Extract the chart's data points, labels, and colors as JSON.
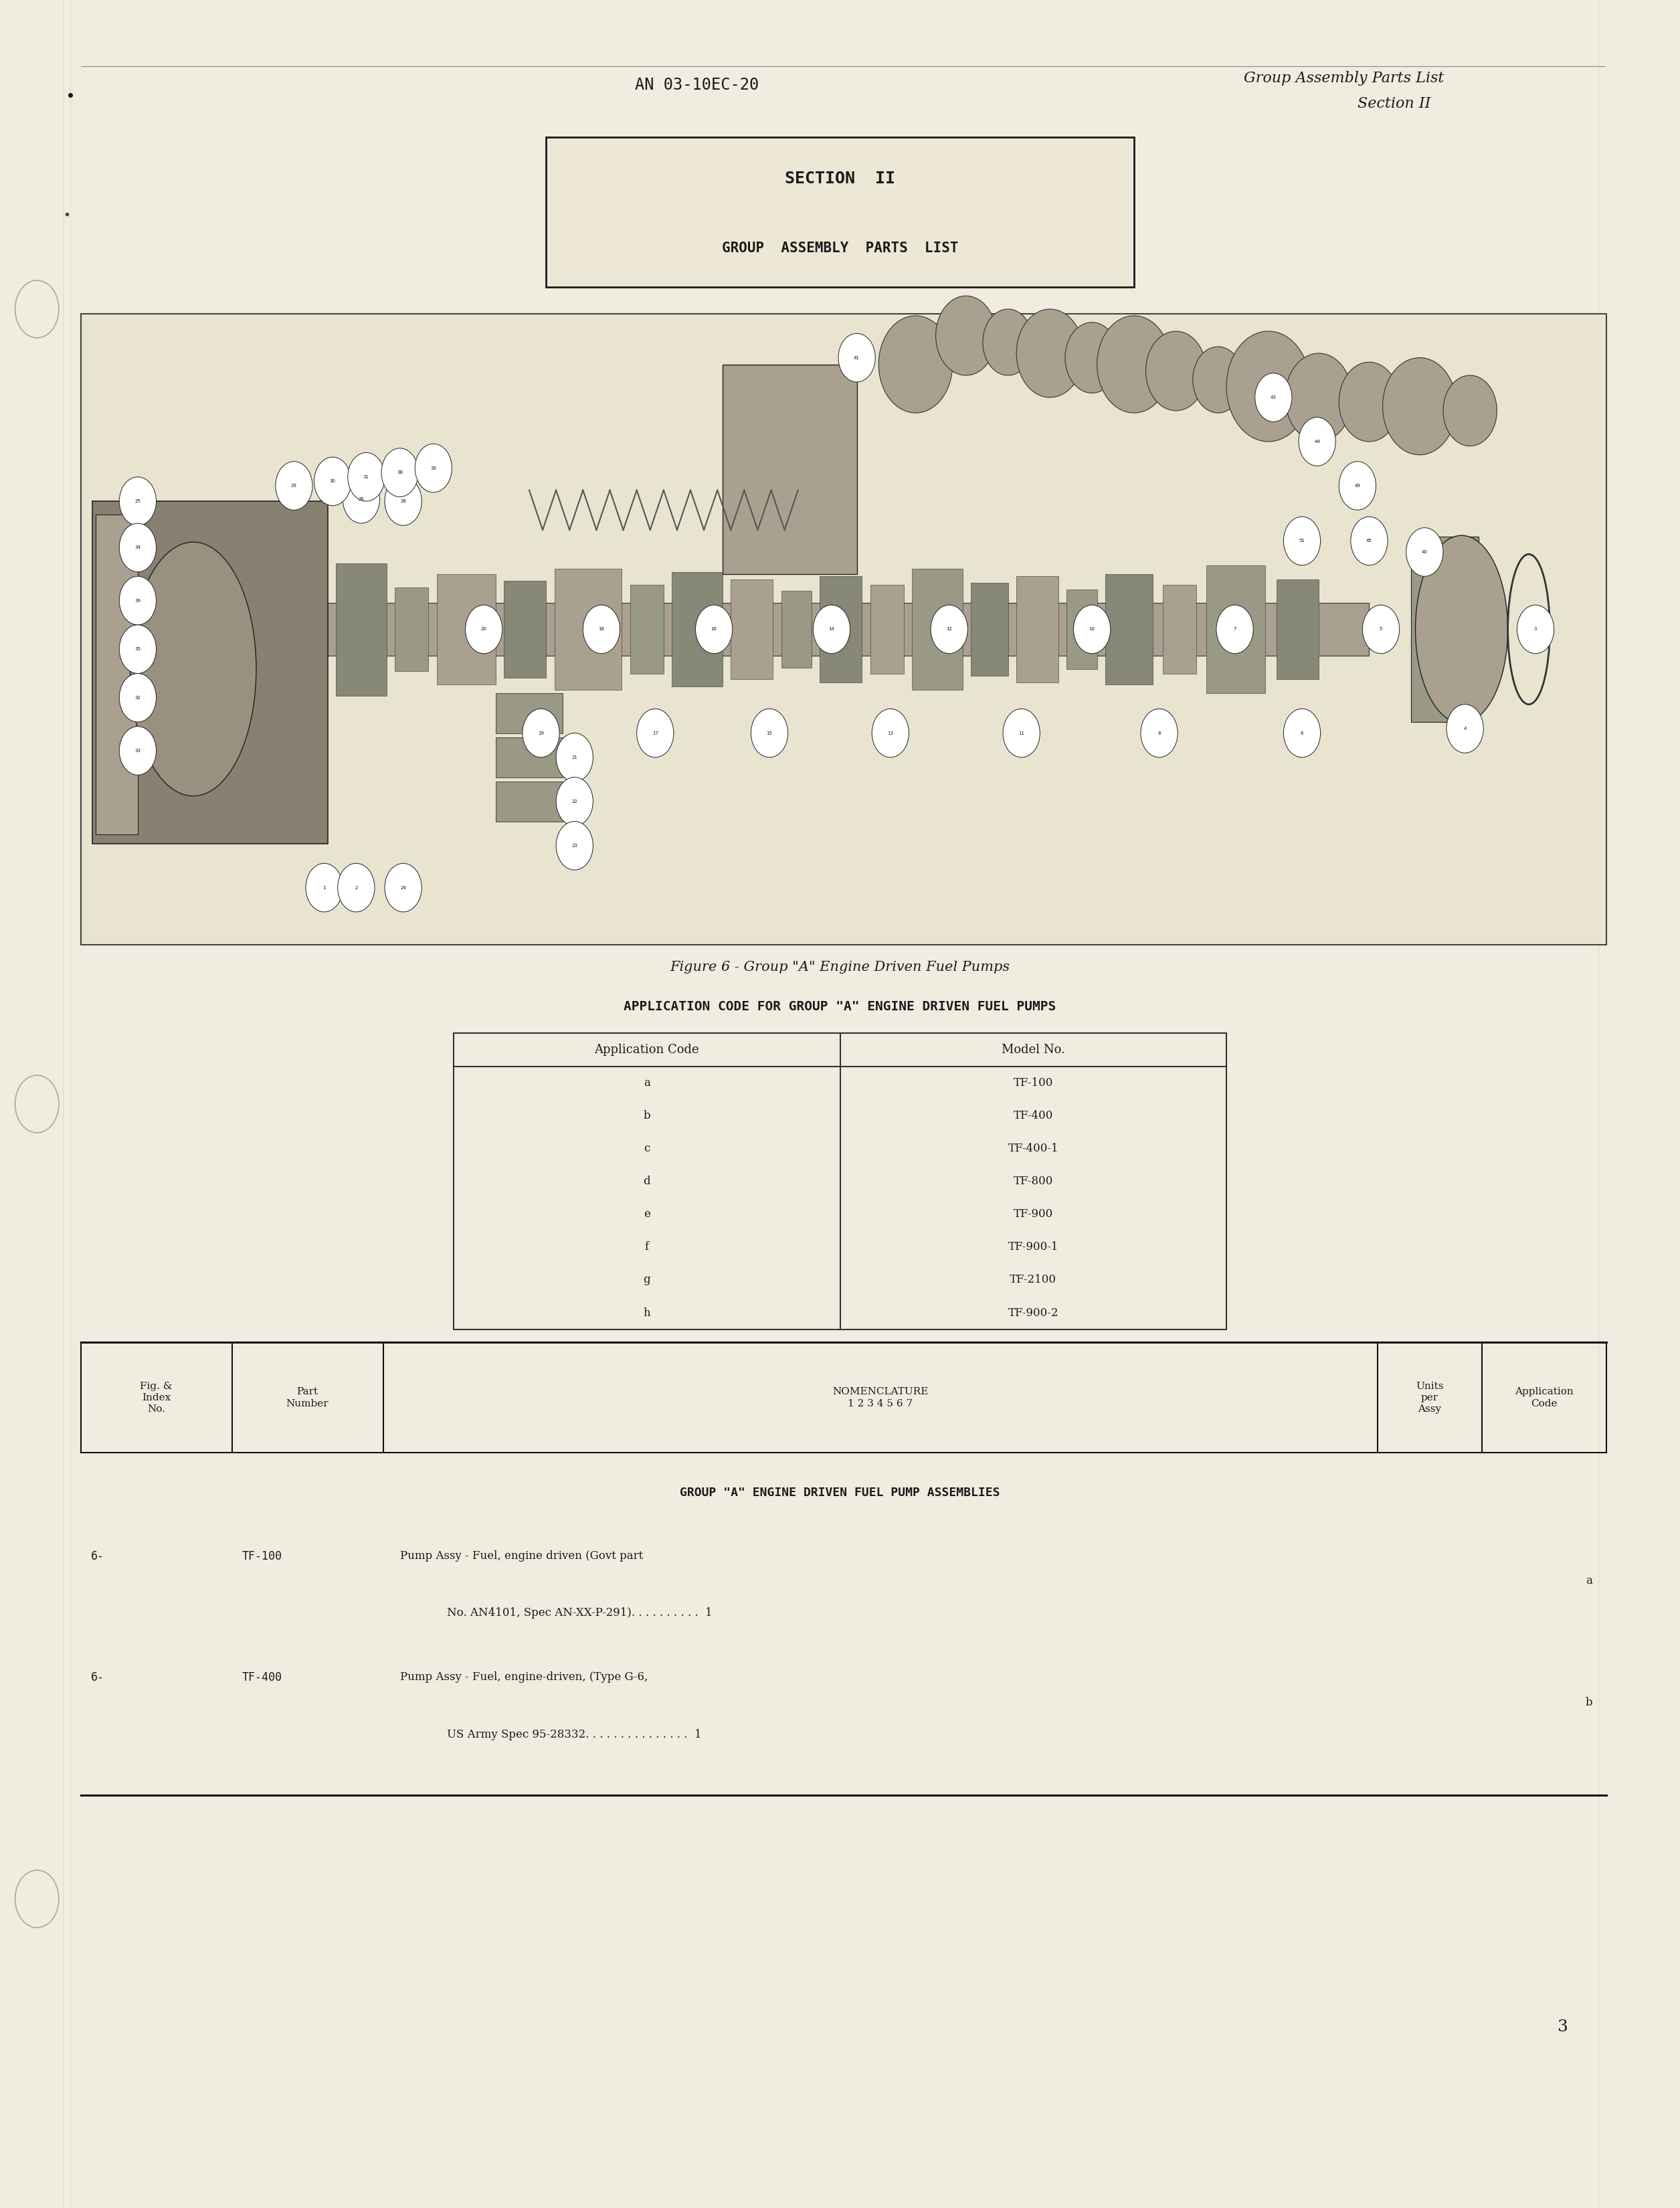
{
  "page_bg_color": "#f0ede0",
  "header_left": "AN 03-10EC-20",
  "header_right_line1": "Group Assembly Parts List",
  "header_right_line2": "Section II",
  "section_box_title": "SECTION  II",
  "section_box_subtitle": "GROUP  ASSEMBLY  PARTS  LIST",
  "figure_caption": "Figure 6 - Group \"A\" Engine Driven Fuel Pumps",
  "app_code_title": "APPLICATION CODE FOR GROUP \"A\" ENGINE DRIVEN FUEL PUMPS",
  "app_code_header_left": "Application Code",
  "app_code_header_right": "Model No.",
  "app_codes": [
    [
      "a",
      "TF-100"
    ],
    [
      "b",
      "TF-400"
    ],
    [
      "c",
      "TF-400-1"
    ],
    [
      "d",
      "TF-800"
    ],
    [
      "e",
      "TF-900"
    ],
    [
      "f",
      "TF-900-1"
    ],
    [
      "g",
      "TF-2100"
    ],
    [
      "h",
      "TF-900-2"
    ]
  ],
  "group_assembly_title": "GROUP \"A\" ENGINE DRIVEN FUEL PUMP ASSEMBLIES",
  "page_number": "3",
  "parts_row1_fig": "6-",
  "parts_row1_part": "TF-100",
  "parts_row1_nom1": "Pump Assy - Fuel, engine driven (Govt part",
  "parts_row1_nom2": "No. AN4101, Spec AN-XX-P-291). . . . . . . . . .  1",
  "parts_row1_app": "a",
  "parts_row2_fig": "6-",
  "parts_row2_part": "TF-400",
  "parts_row2_nom1": "Pump Assy - Fuel, engine-driven, (Type G-6,",
  "parts_row2_nom2": "US Army Spec 95-28332. . . . . . . . . . . . . . .  1",
  "parts_row2_app": "b"
}
